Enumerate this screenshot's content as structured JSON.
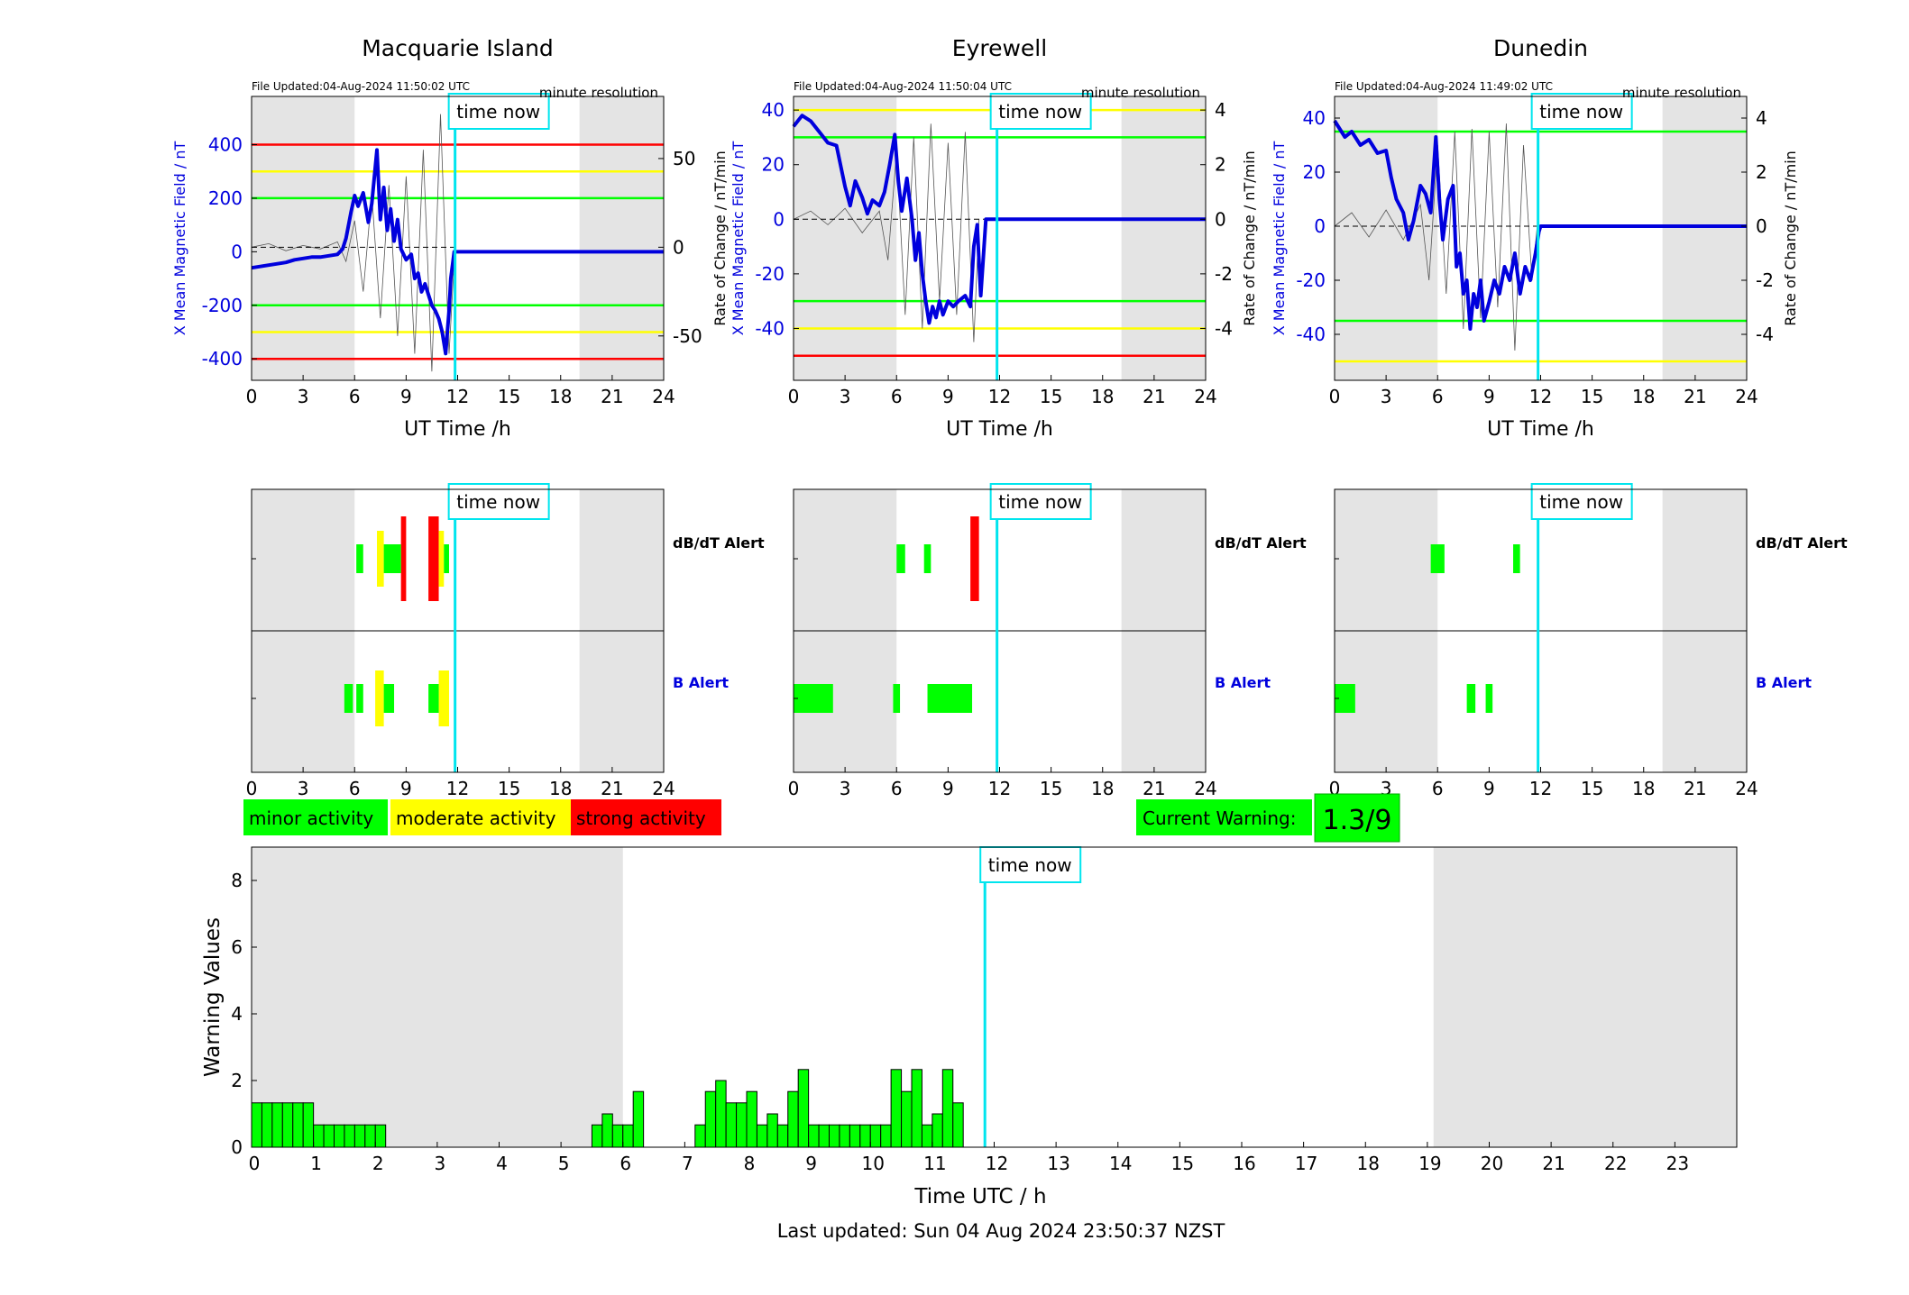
{
  "figure": {
    "x_axis_label": "UT Time /h",
    "left_axis_label": "X Mean Magnetic Field / nT",
    "right_axis_label": "Rate of Change / nT/min",
    "resolution_label": "minute resolution",
    "time_now_label": "time now",
    "time_now_h": 11.85,
    "daylight_shading_h": [
      [
        0,
        6
      ],
      [
        19.1,
        24
      ]
    ],
    "x_ticks": [
      0,
      3,
      6,
      9,
      12,
      15,
      18,
      21,
      24
    ],
    "alert_labels": {
      "dbdt": "dB/dT Alert",
      "b": "B Alert"
    },
    "legend": [
      {
        "label": "minor activity",
        "color": "#00ff00"
      },
      {
        "label": "moderate activity",
        "color": "#ffff00"
      },
      {
        "label": "strong activity",
        "color": "#ff0000"
      }
    ],
    "current_warning": {
      "label": "Current Warning:",
      "value": "1.3/9",
      "color": "#00ff00"
    },
    "last_updated": "Last updated: Sun 04 Aug 2024 23:50:37 NZST",
    "colors": {
      "b_line": "#0000dd",
      "time_now": "#00e5ee",
      "shade": "#e4e4e4",
      "minor": "#00ff00",
      "moderate": "#ffff00",
      "strong": "#ff0000"
    }
  },
  "chart_data": [
    {
      "type": "line",
      "station": "Macquarie Island",
      "file_updated": "File Updated:04-Aug-2024 11:50:02 UTC",
      "xlabel": "UT Time /h",
      "ylabel_left": "X Mean Magnetic Field / nT",
      "ylabel_right": "Rate of Change / nT/min",
      "xlim": [
        0,
        24
      ],
      "ylim_left": [
        -480,
        580
      ],
      "ylim_right": [
        -75,
        85
      ],
      "yticks_left": [
        -400,
        -200,
        0,
        200,
        400
      ],
      "yticks_right": [
        -50,
        0,
        50
      ],
      "thresholds_left": [
        {
          "value": 400,
          "level": "strong"
        },
        {
          "value": 300,
          "level": "moderate"
        },
        {
          "value": 200,
          "level": "minor"
        },
        {
          "value": -200,
          "level": "minor"
        },
        {
          "value": -300,
          "level": "moderate"
        },
        {
          "value": -400,
          "level": "strong"
        }
      ],
      "series": [
        {
          "axis": "left",
          "x": [
            0,
            0.5,
            1,
            1.5,
            2,
            2.5,
            3,
            3.5,
            4,
            4.5,
            5,
            5.3,
            5.5,
            5.8,
            6.0,
            6.2,
            6.5,
            6.8,
            7.0,
            7.3,
            7.5,
            7.7,
            7.9,
            8.1,
            8.3,
            8.5,
            8.7,
            9.0,
            9.3,
            9.5,
            9.7,
            9.9,
            10.1,
            10.3,
            10.5,
            10.7,
            10.9,
            11.1,
            11.3,
            11.5,
            11.6,
            11.8,
            12,
            15,
            18,
            21,
            24
          ],
          "y": [
            -60,
            -55,
            -50,
            -45,
            -40,
            -30,
            -25,
            -20,
            -20,
            -15,
            -10,
            10,
            50,
            150,
            210,
            170,
            220,
            110,
            180,
            380,
            120,
            240,
            80,
            160,
            40,
            120,
            10,
            -30,
            -10,
            -100,
            -80,
            -150,
            -120,
            -160,
            -200,
            -220,
            -250,
            -300,
            -380,
            -220,
            -100,
            0,
            0,
            0,
            0,
            0,
            0
          ]
        },
        {
          "axis": "right",
          "x": [
            0,
            1,
            2,
            3,
            4,
            5,
            5.5,
            6,
            6.5,
            7,
            7.5,
            8,
            8.5,
            9,
            9.5,
            10,
            10.5,
            11,
            11.5,
            11.85
          ],
          "y": [
            0,
            2,
            -2,
            1,
            -1,
            3,
            -8,
            15,
            -25,
            30,
            -40,
            35,
            -50,
            40,
            -60,
            55,
            -70,
            75,
            -60,
            0
          ]
        }
      ]
    },
    {
      "type": "line",
      "station": "Eyrewell",
      "file_updated": "File Updated:04-Aug-2024 11:50:04 UTC",
      "xlabel": "UT Time /h",
      "ylabel_left": "X Mean Magnetic Field / nT",
      "ylabel_right": "Rate of Change / nT/min",
      "xlim": [
        0,
        24
      ],
      "ylim_left": [
        -59,
        45
      ],
      "ylim_right": [
        -5.9,
        4.5
      ],
      "yticks_left": [
        -40,
        -20,
        0,
        20,
        40
      ],
      "yticks_right": [
        -4,
        -2,
        0,
        2,
        4
      ],
      "thresholds_left": [
        {
          "value": 40,
          "level": "moderate"
        },
        {
          "value": 30,
          "level": "minor"
        },
        {
          "value": -30,
          "level": "minor"
        },
        {
          "value": -40,
          "level": "moderate"
        },
        {
          "value": -50,
          "level": "strong"
        }
      ],
      "series": [
        {
          "axis": "left",
          "x": [
            0,
            0.5,
            1,
            1.5,
            2,
            2.5,
            3,
            3.3,
            3.6,
            4,
            4.3,
            4.6,
            5,
            5.3,
            5.6,
            5.9,
            6.1,
            6.3,
            6.6,
            6.9,
            7.1,
            7.3,
            7.5,
            7.7,
            7.9,
            8.1,
            8.3,
            8.5,
            8.7,
            9,
            9.3,
            9.6,
            10,
            10.3,
            10.5,
            10.7,
            10.9,
            11.2,
            11.5,
            12,
            15,
            18,
            21,
            24
          ],
          "y": [
            34,
            38,
            36,
            32,
            28,
            27,
            12,
            5,
            14,
            8,
            2,
            7,
            5,
            10,
            20,
            31,
            14,
            3,
            15,
            0,
            -15,
            -5,
            -20,
            -30,
            -38,
            -32,
            -36,
            -30,
            -35,
            -30,
            -32,
            -30,
            -28,
            -32,
            -10,
            -2,
            -28,
            0,
            0,
            0,
            0,
            0,
            0,
            0
          ]
        },
        {
          "axis": "right",
          "x": [
            0,
            1,
            2,
            3,
            4,
            5,
            5.5,
            6,
            6.5,
            7,
            7.5,
            8,
            8.5,
            9,
            9.5,
            10,
            10.5,
            10.8
          ],
          "y": [
            0,
            0.3,
            -0.2,
            0.4,
            -0.5,
            0.3,
            -1.5,
            2.5,
            -3.5,
            3,
            -4,
            3.5,
            -3,
            2.8,
            -3.5,
            3.2,
            -4.5,
            0
          ]
        }
      ]
    },
    {
      "type": "line",
      "station": "Dunedin",
      "file_updated": "File Updated:04-Aug-2024 11:49:02 UTC",
      "xlabel": "UT Time /h",
      "ylabel_left": "X Mean Magnetic Field / nT",
      "ylabel_right": "Rate of Change / nT/min",
      "xlim": [
        0,
        24
      ],
      "ylim_left": [
        -57,
        48
      ],
      "ylim_right": [
        -5.7,
        4.8
      ],
      "yticks_left": [
        -40,
        -20,
        0,
        20,
        40
      ],
      "yticks_right": [
        -4,
        -2,
        0,
        2,
        4
      ],
      "thresholds_left": [
        {
          "value": 35,
          "level": "minor"
        },
        {
          "value": -35,
          "level": "minor"
        },
        {
          "value": -50,
          "level": "moderate"
        }
      ],
      "series": [
        {
          "axis": "left",
          "x": [
            0,
            0.3,
            0.6,
            1,
            1.5,
            2,
            2.5,
            3,
            3.3,
            3.6,
            4,
            4.3,
            4.6,
            5,
            5.3,
            5.6,
            5.9,
            6.1,
            6.3,
            6.6,
            6.9,
            7.1,
            7.3,
            7.5,
            7.7,
            7.9,
            8.1,
            8.3,
            8.5,
            8.7,
            9,
            9.3,
            9.6,
            9.9,
            10.2,
            10.5,
            10.8,
            11.1,
            11.4,
            11.7,
            11.9,
            12,
            15,
            18,
            21,
            24
          ],
          "y": [
            39,
            36,
            33,
            35,
            30,
            32,
            27,
            28,
            18,
            10,
            5,
            -5,
            2,
            15,
            12,
            5,
            33,
            10,
            -5,
            10,
            15,
            -15,
            -10,
            -25,
            -20,
            -38,
            -25,
            -30,
            -20,
            -35,
            -28,
            -20,
            -25,
            -15,
            -20,
            -10,
            -25,
            -15,
            -20,
            -10,
            -2,
            0,
            0,
            0,
            0,
            0
          ]
        },
        {
          "axis": "right",
          "x": [
            0,
            1,
            2,
            3,
            4,
            5,
            5.5,
            6,
            6.5,
            7,
            7.5,
            8,
            8.5,
            9,
            9.5,
            10,
            10.5,
            11,
            11.5,
            11.8
          ],
          "y": [
            0,
            0.5,
            -0.4,
            0.6,
            -0.5,
            0.8,
            -2,
            3,
            -2.5,
            3.5,
            -3.8,
            3.6,
            -3.4,
            3.5,
            -3,
            3.8,
            -4.6,
            3,
            -2,
            0
          ]
        }
      ]
    },
    {
      "type": "bar",
      "name": "alerts",
      "stations": [
        {
          "station": "Macquarie Island",
          "dbdt": [
            {
              "x0": 6.1,
              "x1": 6.5,
              "level": "minor"
            },
            {
              "x0": 7.3,
              "x1": 7.7,
              "level": "moderate"
            },
            {
              "x0": 7.7,
              "x1": 8.7,
              "level": "minor"
            },
            {
              "x0": 8.7,
              "x1": 9.0,
              "level": "strong"
            },
            {
              "x0": 10.3,
              "x1": 10.9,
              "level": "strong"
            },
            {
              "x0": 10.9,
              "x1": 11.2,
              "level": "moderate"
            },
            {
              "x0": 11.2,
              "x1": 11.5,
              "level": "minor"
            }
          ],
          "b": [
            {
              "x0": 5.4,
              "x1": 5.9,
              "level": "minor"
            },
            {
              "x0": 6.1,
              "x1": 6.5,
              "level": "minor"
            },
            {
              "x0": 7.2,
              "x1": 7.7,
              "level": "moderate"
            },
            {
              "x0": 7.7,
              "x1": 8.3,
              "level": "minor"
            },
            {
              "x0": 10.3,
              "x1": 10.9,
              "level": "minor"
            },
            {
              "x0": 10.9,
              "x1": 11.5,
              "level": "moderate"
            }
          ]
        },
        {
          "station": "Eyrewell",
          "dbdt": [
            {
              "x0": 6.0,
              "x1": 6.5,
              "level": "minor"
            },
            {
              "x0": 7.6,
              "x1": 8.0,
              "level": "minor"
            },
            {
              "x0": 10.3,
              "x1": 10.8,
              "level": "strong"
            }
          ],
          "b": [
            {
              "x0": 0,
              "x1": 2.3,
              "level": "minor"
            },
            {
              "x0": 5.8,
              "x1": 6.2,
              "level": "minor"
            },
            {
              "x0": 7.8,
              "x1": 10.4,
              "level": "minor"
            }
          ]
        },
        {
          "station": "Dunedin",
          "dbdt": [
            {
              "x0": 5.6,
              "x1": 6.4,
              "level": "minor"
            },
            {
              "x0": 10.4,
              "x1": 10.8,
              "level": "minor"
            }
          ],
          "b": [
            {
              "x0": 0,
              "x1": 1.2,
              "level": "minor"
            },
            {
              "x0": 7.7,
              "x1": 8.2,
              "level": "minor"
            },
            {
              "x0": 8.8,
              "x1": 9.2,
              "level": "minor"
            }
          ]
        }
      ]
    },
    {
      "type": "bar",
      "name": "warning_values",
      "xlabel": "Time UTC / h",
      "ylabel": "Warning Values",
      "xlim": [
        0,
        24
      ],
      "ylim": [
        0,
        9
      ],
      "yticks": [
        0,
        2,
        4,
        6,
        8
      ],
      "xticks": [
        0,
        1,
        2,
        3,
        4,
        5,
        6,
        7,
        8,
        9,
        10,
        11,
        12,
        13,
        14,
        15,
        16,
        17,
        18,
        19,
        20,
        21,
        22,
        23
      ],
      "bin_width_h": 0.1667,
      "bins": [
        {
          "x": 0.0,
          "value": 1.33
        },
        {
          "x": 0.1667,
          "value": 1.33
        },
        {
          "x": 0.3333,
          "value": 1.33
        },
        {
          "x": 0.5,
          "value": 1.33
        },
        {
          "x": 0.6667,
          "value": 1.33
        },
        {
          "x": 0.8333,
          "value": 1.33
        },
        {
          "x": 1.0,
          "value": 0.67
        },
        {
          "x": 1.1667,
          "value": 0.67
        },
        {
          "x": 1.3333,
          "value": 0.67
        },
        {
          "x": 1.5,
          "value": 0.67
        },
        {
          "x": 1.6667,
          "value": 0.67
        },
        {
          "x": 1.8333,
          "value": 0.67
        },
        {
          "x": 2.0,
          "value": 0.67
        },
        {
          "x": 5.5,
          "value": 0.67
        },
        {
          "x": 5.6667,
          "value": 1.0
        },
        {
          "x": 5.8333,
          "value": 0.67
        },
        {
          "x": 6.0,
          "value": 0.67
        },
        {
          "x": 6.1667,
          "value": 1.67
        },
        {
          "x": 7.1667,
          "value": 0.67
        },
        {
          "x": 7.3333,
          "value": 1.67
        },
        {
          "x": 7.5,
          "value": 2.0
        },
        {
          "x": 7.6667,
          "value": 1.33
        },
        {
          "x": 7.8333,
          "value": 1.33
        },
        {
          "x": 8.0,
          "value": 1.67
        },
        {
          "x": 8.1667,
          "value": 0.67
        },
        {
          "x": 8.3333,
          "value": 1.0
        },
        {
          "x": 8.5,
          "value": 0.67
        },
        {
          "x": 8.6667,
          "value": 1.67
        },
        {
          "x": 8.8333,
          "value": 2.33
        },
        {
          "x": 9.0,
          "value": 0.67
        },
        {
          "x": 9.1667,
          "value": 0.67
        },
        {
          "x": 9.3333,
          "value": 0.67
        },
        {
          "x": 9.5,
          "value": 0.67
        },
        {
          "x": 9.6667,
          "value": 0.67
        },
        {
          "x": 9.8333,
          "value": 0.67
        },
        {
          "x": 10.0,
          "value": 0.67
        },
        {
          "x": 10.1667,
          "value": 0.67
        },
        {
          "x": 10.3333,
          "value": 2.33
        },
        {
          "x": 10.5,
          "value": 1.67
        },
        {
          "x": 10.6667,
          "value": 2.33
        },
        {
          "x": 10.8333,
          "value": 0.67
        },
        {
          "x": 11.0,
          "value": 1.0
        },
        {
          "x": 11.1667,
          "value": 2.33
        },
        {
          "x": 11.3333,
          "value": 1.33
        }
      ]
    }
  ]
}
